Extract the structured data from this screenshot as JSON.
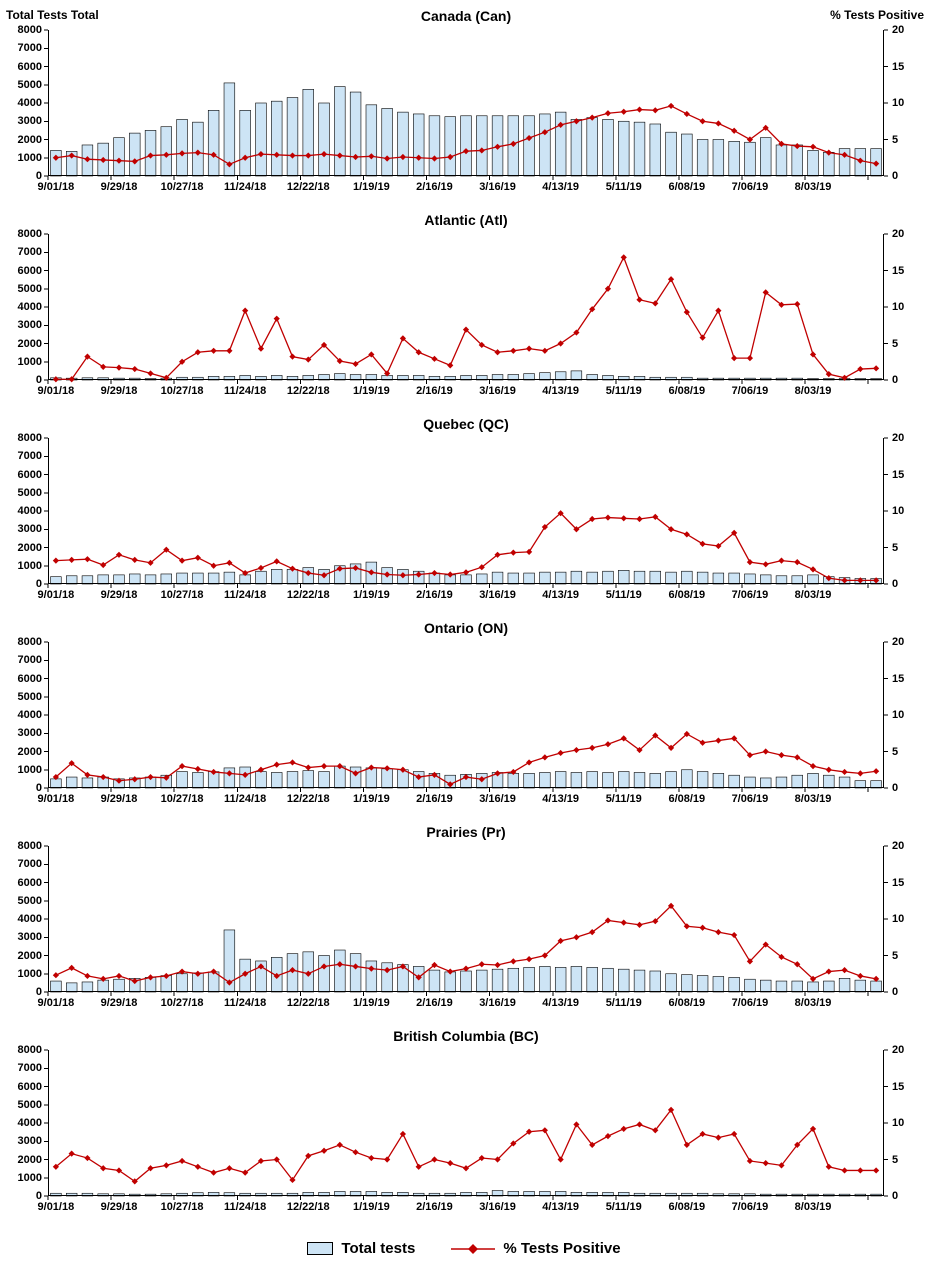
{
  "page": {
    "left_axis_title": "Total Tests Total",
    "right_axis_title": "% Tests Positive"
  },
  "legend": {
    "bar_label": "Total tests",
    "line_label": "% Tests Positive"
  },
  "colors": {
    "bar_fill": "#CDE4F5",
    "bar_stroke": "#000000",
    "line": "#C00000",
    "axis": "#000000"
  },
  "axes": {
    "left_ticks": [
      0,
      1000,
      2000,
      3000,
      4000,
      5000,
      6000,
      7000,
      8000
    ],
    "left_max": 8000,
    "right_ticks": [
      0,
      5,
      10,
      15,
      20
    ],
    "right_max": 20,
    "x_tick_labels": [
      "9/01/18",
      "9/29/18",
      "10/27/18",
      "11/24/18",
      "12/22/18",
      "1/19/19",
      "2/16/19",
      "3/16/19",
      "4/13/19",
      "5/11/19",
      "6/08/19",
      "7/06/19",
      "8/03/19"
    ],
    "x_tick_every": 4,
    "grid": false,
    "legend_position": "bottom"
  },
  "chart_data": [
    {
      "type": "bar",
      "id": "can",
      "title": "Canada (Can)",
      "bar_series_name": "Total tests",
      "line_series_name": "% Tests Positive",
      "total_tests": [
        1400,
        1350,
        1700,
        1800,
        2100,
        2350,
        2500,
        2700,
        3100,
        2950,
        3600,
        5100,
        3600,
        4000,
        4100,
        4300,
        4750,
        4000,
        4900,
        4600,
        3900,
        3700,
        3500,
        3400,
        3300,
        3250,
        3300,
        3300,
        3300,
        3300,
        3300,
        3400,
        3500,
        3100,
        3200,
        3100,
        3000,
        2950,
        2850,
        2400,
        2300,
        2000,
        2000,
        1900,
        1850,
        2100,
        1700,
        1700,
        1400,
        1300,
        1500,
        1500,
        1500
      ],
      "pct_positive": [
        2.5,
        2.8,
        2.3,
        2.2,
        2.1,
        2.0,
        2.8,
        2.9,
        3.1,
        3.2,
        2.9,
        1.6,
        2.5,
        3.0,
        2.9,
        2.8,
        2.8,
        3.0,
        2.8,
        2.6,
        2.7,
        2.4,
        2.6,
        2.5,
        2.4,
        2.6,
        3.4,
        3.5,
        4.0,
        4.4,
        5.2,
        6.0,
        7.0,
        7.5,
        8.0,
        8.6,
        8.8,
        9.1,
        9.0,
        9.6,
        8.5,
        7.5,
        7.2,
        6.2,
        5.0,
        6.6,
        4.4,
        4.1,
        4.0,
        3.2,
        2.9,
        2.1,
        1.7
      ]
    },
    {
      "type": "bar",
      "id": "atl",
      "title": "Atlantic (Atl)",
      "bar_series_name": "Total tests",
      "line_series_name": "% Tests Positive",
      "total_tests": [
        120,
        100,
        120,
        120,
        100,
        100,
        80,
        100,
        150,
        150,
        200,
        200,
        250,
        200,
        250,
        200,
        250,
        300,
        350,
        300,
        300,
        250,
        250,
        250,
        200,
        200,
        250,
        250,
        300,
        300,
        350,
        400,
        450,
        500,
        300,
        250,
        200,
        200,
        150,
        150,
        150,
        100,
        100,
        100,
        100,
        100,
        100,
        100,
        80,
        80,
        80,
        80,
        80
      ],
      "pct_positive": [
        0.1,
        0.1,
        3.2,
        1.8,
        1.7,
        1.5,
        0.9,
        0.3,
        2.5,
        3.8,
        4.0,
        4.0,
        9.5,
        4.3,
        8.4,
        3.2,
        2.8,
        4.8,
        2.6,
        2.2,
        3.5,
        0.9,
        5.7,
        3.8,
        2.9,
        2.0,
        6.9,
        4.8,
        3.8,
        4.0,
        4.3,
        4.0,
        5.0,
        6.5,
        9.7,
        12.5,
        16.8,
        11.0,
        10.5,
        13.8,
        9.3,
        5.8,
        9.5,
        3.0,
        3.0,
        12.0,
        10.3,
        10.4,
        3.5,
        0.8,
        0.3,
        1.5,
        1.6
      ]
    },
    {
      "type": "bar",
      "id": "qc",
      "title": "Quebec (QC)",
      "bar_series_name": "Total tests",
      "line_series_name": "% Tests Positive",
      "total_tests": [
        400,
        450,
        450,
        500,
        500,
        550,
        500,
        550,
        600,
        600,
        600,
        650,
        500,
        700,
        800,
        800,
        900,
        800,
        1000,
        1100,
        1200,
        900,
        800,
        700,
        600,
        500,
        500,
        550,
        650,
        600,
        600,
        650,
        650,
        700,
        650,
        700,
        750,
        700,
        700,
        650,
        700,
        650,
        600,
        600,
        550,
        500,
        450,
        450,
        500,
        400,
        350,
        300,
        300
      ],
      "pct_positive": [
        3.2,
        3.3,
        3.4,
        2.6,
        4.0,
        3.3,
        2.9,
        4.7,
        3.2,
        3.6,
        2.5,
        2.9,
        1.5,
        2.2,
        3.1,
        2.1,
        1.5,
        1.2,
        2.1,
        2.2,
        1.6,
        1.3,
        1.2,
        1.3,
        1.5,
        1.3,
        1.6,
        2.3,
        4.0,
        4.3,
        4.4,
        7.8,
        9.7,
        7.5,
        8.9,
        9.1,
        9.0,
        8.9,
        9.2,
        7.5,
        6.8,
        5.5,
        5.2,
        7.0,
        3.0,
        2.7,
        3.2,
        3.0,
        2.0,
        0.8,
        0.5,
        0.5,
        0.5
      ]
    },
    {
      "type": "bar",
      "id": "on",
      "title": "Ontario (ON)",
      "bar_series_name": "Total tests",
      "line_series_name": "% Tests Positive",
      "total_tests": [
        500,
        600,
        550,
        600,
        500,
        550,
        600,
        700,
        900,
        850,
        900,
        1100,
        1150,
        900,
        850,
        900,
        950,
        900,
        1200,
        1150,
        1100,
        1050,
        1000,
        900,
        800,
        700,
        750,
        800,
        850,
        800,
        800,
        850,
        900,
        850,
        900,
        850,
        900,
        850,
        800,
        900,
        1000,
        900,
        800,
        700,
        600,
        550,
        600,
        700,
        800,
        700,
        600,
        400,
        400
      ],
      "pct_positive": [
        1.5,
        3.4,
        1.8,
        1.5,
        1.0,
        1.2,
        1.5,
        1.4,
        3.0,
        2.6,
        2.2,
        2.0,
        1.8,
        2.5,
        3.2,
        3.5,
        2.8,
        3.0,
        3.0,
        2.0,
        2.8,
        2.7,
        2.5,
        1.5,
        1.8,
        0.5,
        1.5,
        1.2,
        2.0,
        2.2,
        3.5,
        4.2,
        4.8,
        5.2,
        5.5,
        6.0,
        6.8,
        5.2,
        7.2,
        5.5,
        7.4,
        6.2,
        6.5,
        6.8,
        4.5,
        5.0,
        4.5,
        4.2,
        3.0,
        2.5,
        2.2,
        2.0,
        2.3
      ]
    },
    {
      "type": "bar",
      "id": "pr",
      "title": "Prairies (Pr)",
      "bar_series_name": "Total tests",
      "line_series_name": "% Tests Positive",
      "total_tests": [
        600,
        500,
        550,
        650,
        700,
        750,
        800,
        900,
        1000,
        1050,
        1100,
        3400,
        1800,
        1700,
        1900,
        2100,
        2200,
        2000,
        2300,
        2100,
        1700,
        1600,
        1500,
        1400,
        1200,
        1100,
        1150,
        1200,
        1250,
        1300,
        1350,
        1400,
        1350,
        1400,
        1350,
        1300,
        1250,
        1200,
        1150,
        1000,
        950,
        900,
        850,
        800,
        700,
        650,
        600,
        600,
        550,
        600,
        750,
        650,
        600
      ],
      "pct_positive": [
        2.3,
        3.3,
        2.2,
        1.8,
        2.2,
        1.5,
        2.0,
        2.2,
        2.8,
        2.5,
        2.8,
        1.3,
        2.5,
        3.5,
        2.2,
        3.0,
        2.5,
        3.5,
        3.8,
        3.5,
        3.2,
        3.0,
        3.5,
        2.0,
        3.7,
        2.8,
        3.2,
        3.8,
        3.7,
        4.2,
        4.5,
        5.0,
        7.0,
        7.5,
        8.2,
        9.8,
        9.5,
        9.2,
        9.7,
        11.8,
        9.0,
        8.8,
        8.2,
        7.8,
        4.2,
        6.5,
        4.8,
        3.8,
        1.8,
        2.8,
        3.0,
        2.2,
        1.8
      ]
    },
    {
      "type": "bar",
      "id": "bc",
      "title": "British Columbia (BC)",
      "bar_series_name": "Total tests",
      "line_series_name": "% Tests Positive",
      "total_tests": [
        150,
        150,
        150,
        120,
        120,
        100,
        100,
        120,
        150,
        180,
        200,
        180,
        150,
        150,
        150,
        150,
        200,
        200,
        250,
        250,
        250,
        200,
        200,
        150,
        150,
        150,
        200,
        200,
        300,
        250,
        250,
        250,
        250,
        200,
        200,
        200,
        200,
        150,
        150,
        150,
        150,
        150,
        120,
        120,
        120,
        100,
        100,
        100,
        100,
        100,
        100,
        100,
        100
      ],
      "pct_positive": [
        4.0,
        5.8,
        5.2,
        3.8,
        3.5,
        2.0,
        3.8,
        4.2,
        4.8,
        4.0,
        3.2,
        3.8,
        3.2,
        4.8,
        5.0,
        2.2,
        5.5,
        6.2,
        7.0,
        6.0,
        5.2,
        5.0,
        8.5,
        4.0,
        5.0,
        4.5,
        3.8,
        5.2,
        5.0,
        7.2,
        8.8,
        9.0,
        5.0,
        9.8,
        7.0,
        8.2,
        9.2,
        9.8,
        9.0,
        11.8,
        7.0,
        8.5,
        8.0,
        8.5,
        4.8,
        4.5,
        4.2,
        7.0,
        9.2,
        4.0,
        3.5,
        3.5,
        3.5
      ]
    }
  ]
}
